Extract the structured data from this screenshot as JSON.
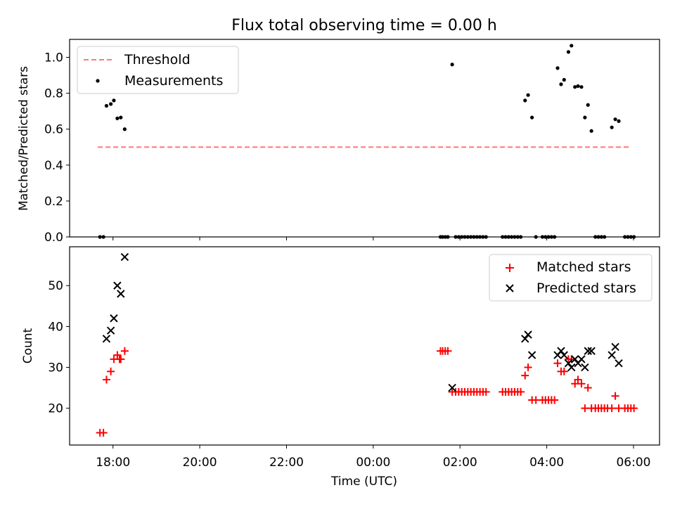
{
  "chart_data": [
    {
      "type": "scatter",
      "title": "Flux total observing time = 0.00 h",
      "xlabel": "",
      "ylabel": "Matched/Predicted stars",
      "xlim": [
        -7.0,
        6.6
      ],
      "ylim": [
        0.0,
        1.1
      ],
      "yticks": [
        0.0,
        0.2,
        0.4,
        0.6,
        0.8,
        1.0
      ],
      "ytick_labels": [
        "0.0",
        "0.2",
        "0.4",
        "0.6",
        "0.8",
        "1.0"
      ],
      "grid": false,
      "legend": {
        "position": "top-left",
        "entries": [
          "Threshold",
          "Measurements"
        ]
      },
      "threshold": {
        "name": "Threshold",
        "x": [
          -6.35,
          5.95
        ],
        "y": 0.5,
        "color": "#ff7777"
      },
      "measurements": {
        "name": "Measurements",
        "color": "#000000",
        "points": [
          [
            -6.3,
            0.0
          ],
          [
            -6.22,
            0.0
          ],
          [
            -6.15,
            0.73
          ],
          [
            -6.05,
            0.74
          ],
          [
            -5.98,
            0.76
          ],
          [
            -5.9,
            0.66
          ],
          [
            -5.82,
            0.665
          ],
          [
            -5.73,
            0.6
          ],
          [
            1.55,
            0.0
          ],
          [
            1.6,
            0.0
          ],
          [
            1.66,
            0.0
          ],
          [
            1.72,
            0.0
          ],
          [
            1.82,
            0.96
          ],
          [
            1.9,
            0.0
          ],
          [
            1.97,
            0.0
          ],
          [
            2.04,
            0.0
          ],
          [
            2.11,
            0.0
          ],
          [
            2.18,
            0.0
          ],
          [
            2.25,
            0.0
          ],
          [
            2.32,
            0.0
          ],
          [
            2.39,
            0.0
          ],
          [
            2.46,
            0.0
          ],
          [
            2.53,
            0.0
          ],
          [
            2.6,
            0.0
          ],
          [
            2.98,
            0.0
          ],
          [
            3.05,
            0.0
          ],
          [
            3.12,
            0.0
          ],
          [
            3.19,
            0.0
          ],
          [
            3.26,
            0.0
          ],
          [
            3.33,
            0.0
          ],
          [
            3.4,
            0.0
          ],
          [
            3.5,
            0.76
          ],
          [
            3.57,
            0.79
          ],
          [
            3.66,
            0.665
          ],
          [
            3.75,
            0.0
          ],
          [
            3.9,
            0.0
          ],
          [
            3.97,
            0.0
          ],
          [
            4.04,
            0.0
          ],
          [
            4.11,
            0.0
          ],
          [
            4.18,
            0.0
          ],
          [
            4.25,
            0.94
          ],
          [
            4.33,
            0.85
          ],
          [
            4.4,
            0.875
          ],
          [
            4.5,
            1.03
          ],
          [
            4.57,
            1.065
          ],
          [
            4.65,
            0.835
          ],
          [
            4.72,
            0.84
          ],
          [
            4.8,
            0.835
          ],
          [
            4.88,
            0.665
          ],
          [
            4.95,
            0.735
          ],
          [
            5.03,
            0.59
          ],
          [
            5.12,
            0.0
          ],
          [
            5.19,
            0.0
          ],
          [
            5.26,
            0.0
          ],
          [
            5.33,
            0.0
          ],
          [
            5.5,
            0.61
          ],
          [
            5.58,
            0.655
          ],
          [
            5.66,
            0.645
          ],
          [
            5.8,
            0.0
          ],
          [
            5.87,
            0.0
          ],
          [
            5.94,
            0.0
          ],
          [
            6.01,
            0.0
          ]
        ]
      }
    },
    {
      "type": "scatter",
      "title": "",
      "xlabel": "Time (UTC)",
      "ylabel": "Count",
      "xlim": [
        -7.0,
        6.6
      ],
      "ylim": [
        11.0,
        59.5
      ],
      "xticks": [
        -6,
        -4,
        -2,
        0,
        2,
        4,
        6
      ],
      "xtick_labels": [
        "18:00",
        "20:00",
        "22:00",
        "00:00",
        "02:00",
        "04:00",
        "06:00"
      ],
      "yticks": [
        20,
        30,
        40,
        50
      ],
      "ytick_labels": [
        "20",
        "30",
        "40",
        "50"
      ],
      "grid": false,
      "legend": {
        "position": "top-right",
        "entries": [
          "Matched stars",
          "Predicted stars"
        ]
      },
      "series": [
        {
          "name": "Matched stars",
          "marker": "plus",
          "color": "#ff0000",
          "points": [
            [
              -6.3,
              14
            ],
            [
              -6.22,
              14
            ],
            [
              -6.15,
              27
            ],
            [
              -6.05,
              29
            ],
            [
              -5.98,
              32
            ],
            [
              -5.9,
              33
            ],
            [
              -5.85,
              32
            ],
            [
              -5.82,
              32
            ],
            [
              -5.73,
              34
            ],
            [
              1.55,
              34
            ],
            [
              1.6,
              34
            ],
            [
              1.66,
              34
            ],
            [
              1.72,
              34
            ],
            [
              1.82,
              24
            ],
            [
              1.9,
              24
            ],
            [
              1.97,
              24
            ],
            [
              2.04,
              24
            ],
            [
              2.11,
              24
            ],
            [
              2.18,
              24
            ],
            [
              2.25,
              24
            ],
            [
              2.32,
              24
            ],
            [
              2.39,
              24
            ],
            [
              2.46,
              24
            ],
            [
              2.53,
              24
            ],
            [
              2.6,
              24
            ],
            [
              2.98,
              24
            ],
            [
              3.05,
              24
            ],
            [
              3.12,
              24
            ],
            [
              3.19,
              24
            ],
            [
              3.26,
              24
            ],
            [
              3.33,
              24
            ],
            [
              3.4,
              24
            ],
            [
              3.5,
              28
            ],
            [
              3.57,
              30
            ],
            [
              3.66,
              22
            ],
            [
              3.75,
              22
            ],
            [
              3.9,
              22
            ],
            [
              3.97,
              22
            ],
            [
              4.04,
              22
            ],
            [
              4.11,
              22
            ],
            [
              4.18,
              22
            ],
            [
              4.25,
              31
            ],
            [
              4.33,
              29
            ],
            [
              4.4,
              29
            ],
            [
              4.5,
              32
            ],
            [
              4.57,
              32
            ],
            [
              4.65,
              26
            ],
            [
              4.72,
              27
            ],
            [
              4.8,
              26
            ],
            [
              4.88,
              20
            ],
            [
              4.95,
              25
            ],
            [
              5.03,
              20
            ],
            [
              5.12,
              20
            ],
            [
              5.19,
              20
            ],
            [
              5.26,
              20
            ],
            [
              5.33,
              20
            ],
            [
              5.4,
              20
            ],
            [
              5.5,
              20
            ],
            [
              5.58,
              23
            ],
            [
              5.66,
              20
            ],
            [
              5.8,
              20
            ],
            [
              5.87,
              20
            ],
            [
              5.94,
              20
            ],
            [
              6.01,
              20
            ]
          ]
        },
        {
          "name": "Predicted stars",
          "marker": "x",
          "color": "#000000",
          "points": [
            [
              -6.15,
              37
            ],
            [
              -6.05,
              39
            ],
            [
              -5.98,
              42
            ],
            [
              -5.9,
              50
            ],
            [
              -5.82,
              48
            ],
            [
              -5.73,
              57
            ],
            [
              1.82,
              25
            ],
            [
              3.5,
              37
            ],
            [
              3.57,
              38
            ],
            [
              3.66,
              33
            ],
            [
              4.25,
              33
            ],
            [
              4.33,
              34
            ],
            [
              4.4,
              33
            ],
            [
              4.5,
              31
            ],
            [
              4.57,
              30
            ],
            [
              4.65,
              32
            ],
            [
              4.72,
              31
            ],
            [
              4.8,
              32
            ],
            [
              4.88,
              30
            ],
            [
              4.95,
              34
            ],
            [
              5.03,
              34
            ],
            [
              5.5,
              33
            ],
            [
              5.58,
              35
            ],
            [
              5.66,
              31
            ]
          ]
        }
      ]
    }
  ]
}
